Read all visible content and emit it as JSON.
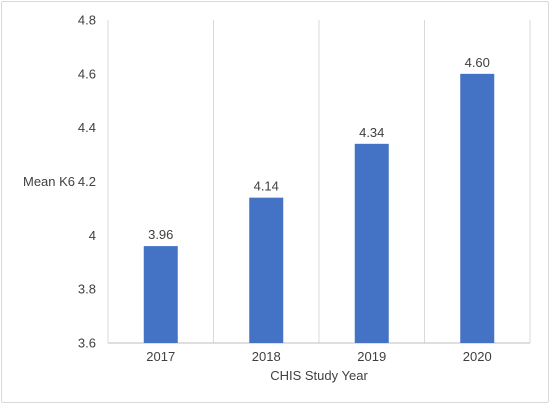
{
  "chart_data": {
    "type": "bar",
    "categories": [
      "2017",
      "2018",
      "2019",
      "2020"
    ],
    "values": [
      3.96,
      4.14,
      4.34,
      4.6
    ],
    "data_labels": [
      "3.96",
      "4.14",
      "4.34",
      "4.60"
    ],
    "xlabel": "CHIS Study Year",
    "ylabel": "Mean K6",
    "ylim": [
      3.6,
      4.8
    ],
    "yticks": [
      "3.6",
      "3.8",
      "4",
      "4.2",
      "4.4",
      "4.6",
      "4.8"
    ],
    "grid": "vertical category separators",
    "legend": "none",
    "bar_color": "#4472c4"
  }
}
